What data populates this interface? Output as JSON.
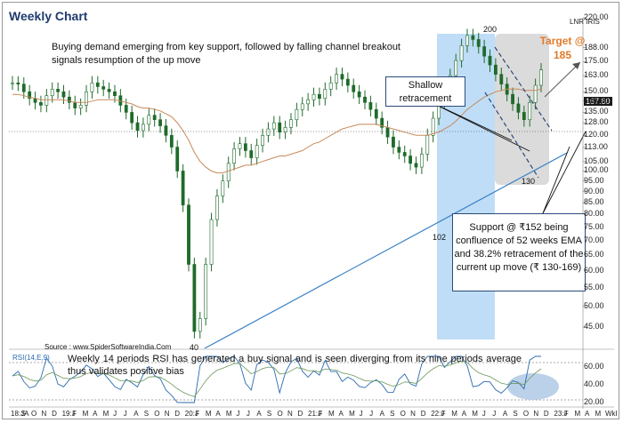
{
  "title": "Weekly Chart",
  "description": "Buying demand emerging from key support, followed by falling channel breakout signals resumption of the up move",
  "symbol": "LNR  IRIS",
  "target_label": "Target @",
  "target_value": "185",
  "shallow_label": "Shallow retracement",
  "support_label": "Support @ ₹152 being confluence of 52 weeks EMA and 38.2% retracement of the current up move (₹ 130-169)",
  "source": "Source : www.SpiderSoftwareIndia.Com",
  "rsi_label": "RSI(14,E,9)",
  "rsi_text": "Weekly 14 periods RSI has generated a buy signal and is seen diverging from its nine periods average thus validates positive bias",
  "last_price": "167.80",
  "point_labels": {
    "high": "200",
    "low_2020": "40",
    "low_2022": "102",
    "low_2023": "130"
  },
  "colors": {
    "title": "#1f3b6e",
    "target": "#e07b2a",
    "candle": "#1f6b2a",
    "ema": "#c8895a",
    "trendline": "#3a82c6",
    "blue_zone": "#a9d2f3",
    "grey_zone": "#cfcfcf",
    "rsi": "#2a6ab0"
  },
  "chart_data": {
    "type": "line",
    "title": "Weekly Chart",
    "y_scale": "log",
    "ylim": [
      40,
      220
    ],
    "y_ticks": [
      "220.00",
      "188.00",
      "175.00",
      "163.00",
      "150.00",
      "143.00",
      "135.00",
      "128.00",
      "120.00",
      "113.00",
      "105.00",
      "100.00",
      "95.00",
      "90.00",
      "85.00",
      "80.00",
      "75.00",
      "70.00",
      "65.00",
      "60.00",
      "55.00",
      "50.00",
      "45.00"
    ],
    "x_tick_labels": [
      "18:JA",
      "S",
      "O",
      "N",
      "D",
      "19:J",
      "F",
      "M",
      "A",
      "M",
      "J",
      "J",
      "A",
      "S",
      "O",
      "N",
      "D",
      "20:J",
      "F",
      "M",
      "A",
      "M",
      "J",
      "J",
      "A",
      "S",
      "O",
      "N",
      "D",
      "21:J",
      "F",
      "M",
      "A",
      "M",
      "J",
      "J",
      "A",
      "S",
      "O",
      "N",
      "D",
      "22:J",
      "F",
      "M",
      "A",
      "M",
      "J",
      "J",
      "A",
      "S",
      "O",
      "N",
      "D",
      "23:J",
      "F",
      "M",
      "A",
      "M",
      "Wkl"
    ],
    "series": [
      {
        "values": [
          157,
          156,
          150,
          145,
          142,
          140,
          147,
          152,
          150,
          146,
          142,
          138,
          140,
          150,
          157,
          154,
          152,
          150,
          147,
          140,
          135,
          128,
          123,
          127,
          133,
          130,
          126,
          120,
          113,
          100,
          84,
          62,
          44,
          47,
          62,
          78,
          88,
          95,
          104,
          112,
          115,
          111,
          107,
          114,
          120,
          124,
          128,
          122,
          125,
          130,
          137,
          141,
          144,
          148,
          145,
          152,
          157,
          164,
          160,
          155,
          150,
          146,
          142,
          137,
          131,
          125,
          119,
          113,
          110,
          108,
          104,
          102,
          109,
          120,
          131,
          143,
          152,
          163,
          176,
          190,
          200,
          196,
          189,
          180,
          172,
          164,
          156,
          148,
          141,
          135,
          130,
          142,
          155,
          167.8
        ]
      },
      {
        "values": [
          148,
          148,
          147,
          146,
          145,
          144,
          144,
          144,
          144,
          144,
          143,
          142,
          142,
          142,
          143,
          144,
          144,
          144,
          144,
          143,
          142,
          141,
          139,
          138,
          138,
          137,
          136,
          134,
          132,
          128,
          123,
          117,
          110,
          105,
          102,
          100,
          99,
          99,
          100,
          101,
          102,
          103,
          103,
          104,
          105,
          106,
          107,
          108,
          108,
          109,
          110,
          111,
          113,
          115,
          116,
          118,
          120,
          122,
          124,
          125,
          126,
          127,
          127,
          127,
          127,
          126,
          125,
          124,
          123,
          122,
          121,
          120,
          120,
          120,
          121,
          122,
          124,
          126,
          129,
          133,
          137,
          140,
          143,
          146,
          148,
          150,
          151,
          152,
          152,
          152,
          151,
          151,
          151,
          152
        ]
      }
    ],
    "rsi": {
      "label": "RSI(14,E,9)",
      "y_ticks": [
        "60.00",
        "40.00",
        "20.00"
      ]
    },
    "annotations": [
      "Shallow retracement",
      "Target @ 185",
      "Support @ ₹152 being confluence of 52 weeks EMA and 38.2% retracement of the current up move (₹ 130-169)"
    ]
  }
}
